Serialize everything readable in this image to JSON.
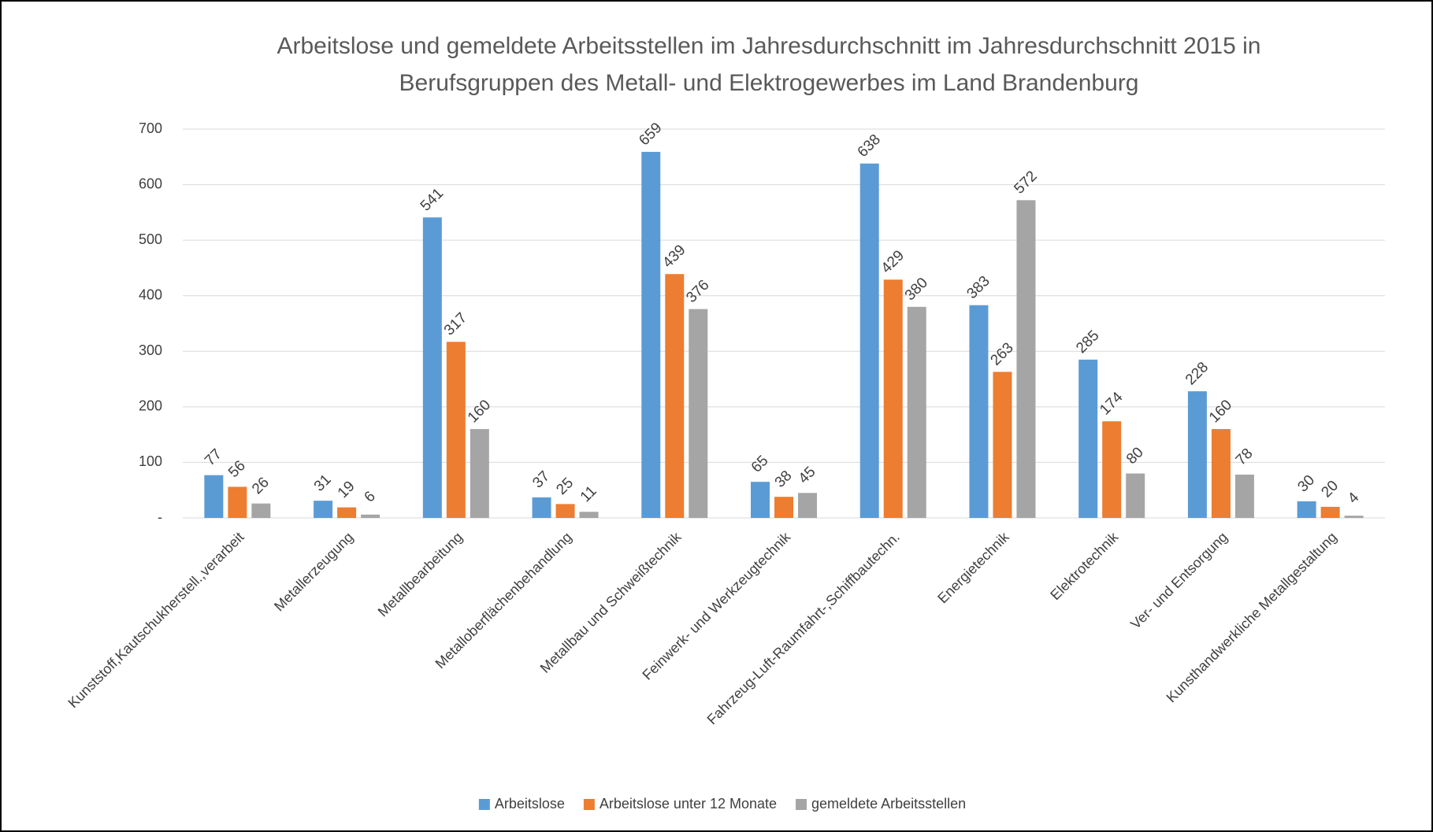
{
  "chart_data": {
    "type": "bar",
    "title": "Arbeitslose und gemeldete Arbeitsstellen im Jahresdurchschnitt im Jahresdurchschnitt 2015 in Berufsgruppen des Metall- und Elektrogewerbes im Land Brandenburg",
    "categories": [
      "Kunststoff,Kautschukherstell.,verarbeit",
      "Metallerzeugung",
      "Metallbearbeitung",
      "Metalloberflächenbehandlung",
      "Metallbau und Schweißtechnik",
      "Feinwerk- und Werkzeugtechnik",
      "Fahrzeug-Luft-Raumfahrt-,Schiffbautechn.",
      "Energietechnik",
      "Elektrotechnik",
      "Ver- und Entsorgung",
      "Kunsthandwerkliche Metallgestaltung"
    ],
    "series": [
      {
        "name": "Arbeitslose",
        "color": "#5b9bd5",
        "values": [
          77,
          31,
          541,
          37,
          659,
          65,
          638,
          383,
          285,
          228,
          30
        ]
      },
      {
        "name": "Arbeitslose unter 12 Monate",
        "color": "#ed7d31",
        "values": [
          56,
          19,
          317,
          25,
          439,
          38,
          429,
          263,
          174,
          160,
          20
        ]
      },
      {
        "name": "gemeldete Arbeitsstellen",
        "color": "#a5a5a5",
        "values": [
          26,
          6,
          160,
          11,
          376,
          45,
          380,
          572,
          80,
          78,
          4
        ]
      }
    ],
    "ylim": [
      0,
      700
    ],
    "yticks": [
      {
        "value": 0,
        "label": "-"
      },
      100,
      200,
      300,
      400,
      500,
      600,
      700
    ],
    "grid": true,
    "legend": "bottom"
  }
}
